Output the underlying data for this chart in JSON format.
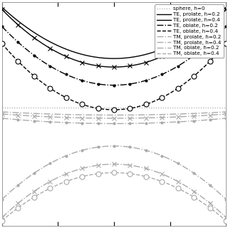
{
  "legend_entries": [
    "sphere, h=0",
    "TE, prolate, h=0.2",
    "TE, prolate, h=0.4",
    "TE, oblate, h=0.2",
    "TE, oblate, h=0.4",
    "TM, prolate, h=0.2",
    "TM, prolate, h=0.4",
    "TM, oblate, h=0.2",
    "TM, oblate, h=0.4"
  ],
  "background_color": "#ffffff",
  "color_dark": "#000000",
  "color_mid": "#555555",
  "color_light": "#aaaaaa",
  "color_sphere": "#aaaaaa"
}
